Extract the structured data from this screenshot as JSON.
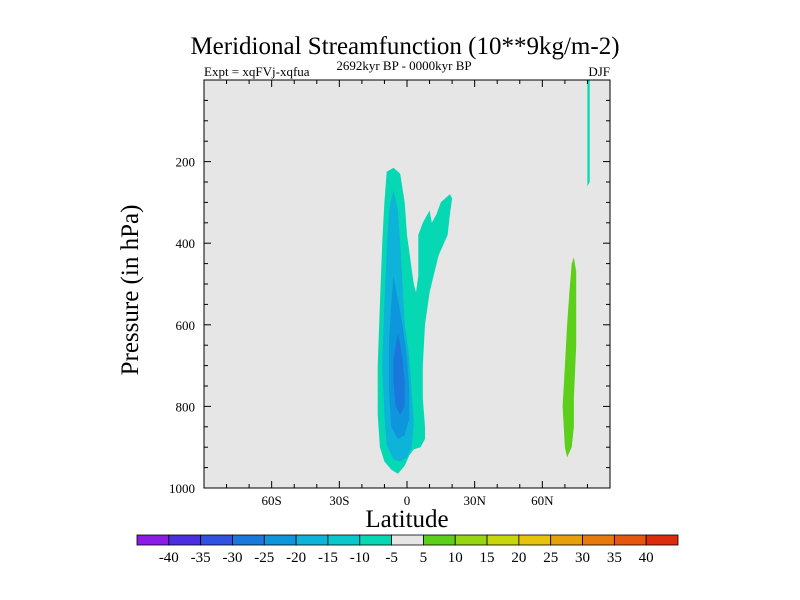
{
  "chart_data": {
    "type": "contour",
    "title": "Meridional Streamfunction (10**9kg/m-2)",
    "subtitle_left": "Expt = xqFVj-xqfua",
    "subtitle_center": "2692kyr BP - 0000kyr BP",
    "subtitle_right": "DJF",
    "xlabel": "Latitude",
    "ylabel": "Pressure (in hPa)",
    "xlim": [
      -90,
      90
    ],
    "ylim": [
      1000,
      0
    ],
    "x_ticks": [
      {
        "value": -60,
        "label": "60S"
      },
      {
        "value": -30,
        "label": "30S"
      },
      {
        "value": 0,
        "label": "0"
      },
      {
        "value": 30,
        "label": "30N"
      },
      {
        "value": 60,
        "label": "60N"
      }
    ],
    "y_ticks": [
      {
        "value": 200,
        "label": "200"
      },
      {
        "value": 400,
        "label": "400"
      },
      {
        "value": 600,
        "label": "600"
      },
      {
        "value": 800,
        "label": "800"
      },
      {
        "value": 1000,
        "label": "1000"
      }
    ],
    "background_color": "#e6e6e6",
    "colorbar": {
      "levels": [
        "-40",
        "-35",
        "-30",
        "-25",
        "-20",
        "-15",
        "-10",
        "-5",
        "5",
        "10",
        "15",
        "20",
        "25",
        "30",
        "35",
        "40"
      ],
      "colors": [
        "#8b1ce6",
        "#4a2ee0",
        "#2f52e0",
        "#1a78dc",
        "#0e96dc",
        "#0db3d8",
        "#08c8cc",
        "#06d8b4",
        "#e6e6e6",
        "#5ccf1a",
        "#96d610",
        "#c8d60c",
        "#e6c40c",
        "#e6a00c",
        "#e67a0c",
        "#e6560c",
        "#dc2c0c"
      ]
    },
    "regions": [
      {
        "name": "tropical-neg-outer",
        "level": "-10 to -5",
        "color": "#06d8b4",
        "points": [
          [
            -9,
            225
          ],
          [
            -6,
            215
          ],
          [
            -3,
            230
          ],
          [
            -1,
            300
          ],
          [
            0,
            380
          ],
          [
            1,
            420
          ],
          [
            2,
            460
          ],
          [
            3,
            500
          ],
          [
            4,
            520
          ],
          [
            5,
            480
          ],
          [
            5,
            430
          ],
          [
            5,
            380
          ],
          [
            7,
            350
          ],
          [
            9,
            330
          ],
          [
            10,
            320
          ],
          [
            11,
            350
          ],
          [
            13,
            330
          ],
          [
            15,
            300
          ],
          [
            17,
            290
          ],
          [
            19,
            280
          ],
          [
            20,
            290
          ],
          [
            19,
            330
          ],
          [
            18,
            380
          ],
          [
            14,
            430
          ],
          [
            10,
            520
          ],
          [
            8,
            600
          ],
          [
            7,
            700
          ],
          [
            7,
            780
          ],
          [
            8,
            850
          ],
          [
            8,
            880
          ],
          [
            6,
            900
          ],
          [
            3,
            905
          ],
          [
            1,
            920
          ],
          [
            -1,
            945
          ],
          [
            -4,
            965
          ],
          [
            -7,
            955
          ],
          [
            -10,
            935
          ],
          [
            -12,
            900
          ],
          [
            -13,
            820
          ],
          [
            -13,
            700
          ],
          [
            -12,
            550
          ],
          [
            -11,
            400
          ],
          [
            -10,
            300
          ]
        ]
      },
      {
        "name": "tropical-neg-15",
        "level": "-15 to -10",
        "color": "#0db3d8",
        "points": [
          [
            -6,
            270
          ],
          [
            -4,
            320
          ],
          [
            -3,
            400
          ],
          [
            -2,
            500
          ],
          [
            -1,
            600
          ],
          [
            1,
            680
          ],
          [
            2,
            760
          ],
          [
            3,
            840
          ],
          [
            2,
            900
          ],
          [
            0,
            925
          ],
          [
            -3,
            935
          ],
          [
            -6,
            930
          ],
          [
            -9,
            895
          ],
          [
            -10,
            820
          ],
          [
            -11,
            700
          ],
          [
            -10,
            550
          ],
          [
            -9,
            420
          ],
          [
            -8,
            320
          ]
        ]
      },
      {
        "name": "tropical-neg-20",
        "level": "-20 to -15",
        "color": "#0e96dc",
        "points": [
          [
            -6,
            480
          ],
          [
            -4,
            540
          ],
          [
            -2,
            600
          ],
          [
            0,
            680
          ],
          [
            1,
            760
          ],
          [
            1,
            830
          ],
          [
            -1,
            870
          ],
          [
            -4,
            880
          ],
          [
            -7,
            850
          ],
          [
            -8,
            760
          ],
          [
            -8,
            640
          ],
          [
            -7,
            550
          ]
        ]
      },
      {
        "name": "tropical-neg-25",
        "level": "-25 to -20",
        "color": "#1a78dc",
        "points": [
          [
            -4,
            620
          ],
          [
            -2,
            680
          ],
          [
            -1,
            740
          ],
          [
            -1,
            800
          ],
          [
            -3,
            820
          ],
          [
            -5,
            800
          ],
          [
            -6,
            740
          ],
          [
            -6,
            680
          ]
        ]
      },
      {
        "name": "arctic-neg",
        "level": "-10 to -5",
        "color": "#06d8b4",
        "points": [
          [
            80,
            0
          ],
          [
            81,
            0
          ],
          [
            81,
            120
          ],
          [
            81,
            250
          ],
          [
            80,
            260
          ],
          [
            80,
            150
          ]
        ]
      },
      {
        "name": "high-lat-pos",
        "level": "5 to 10",
        "color": "#5ccf1a",
        "points": [
          [
            74,
            435
          ],
          [
            75,
            470
          ],
          [
            75,
            560
          ],
          [
            75,
            650
          ],
          [
            74,
            780
          ],
          [
            74,
            850
          ],
          [
            73,
            900
          ],
          [
            71,
            925
          ],
          [
            70,
            900
          ],
          [
            69,
            800
          ],
          [
            70,
            700
          ],
          [
            71,
            600
          ],
          [
            72,
            520
          ],
          [
            73,
            450
          ]
        ]
      }
    ]
  }
}
